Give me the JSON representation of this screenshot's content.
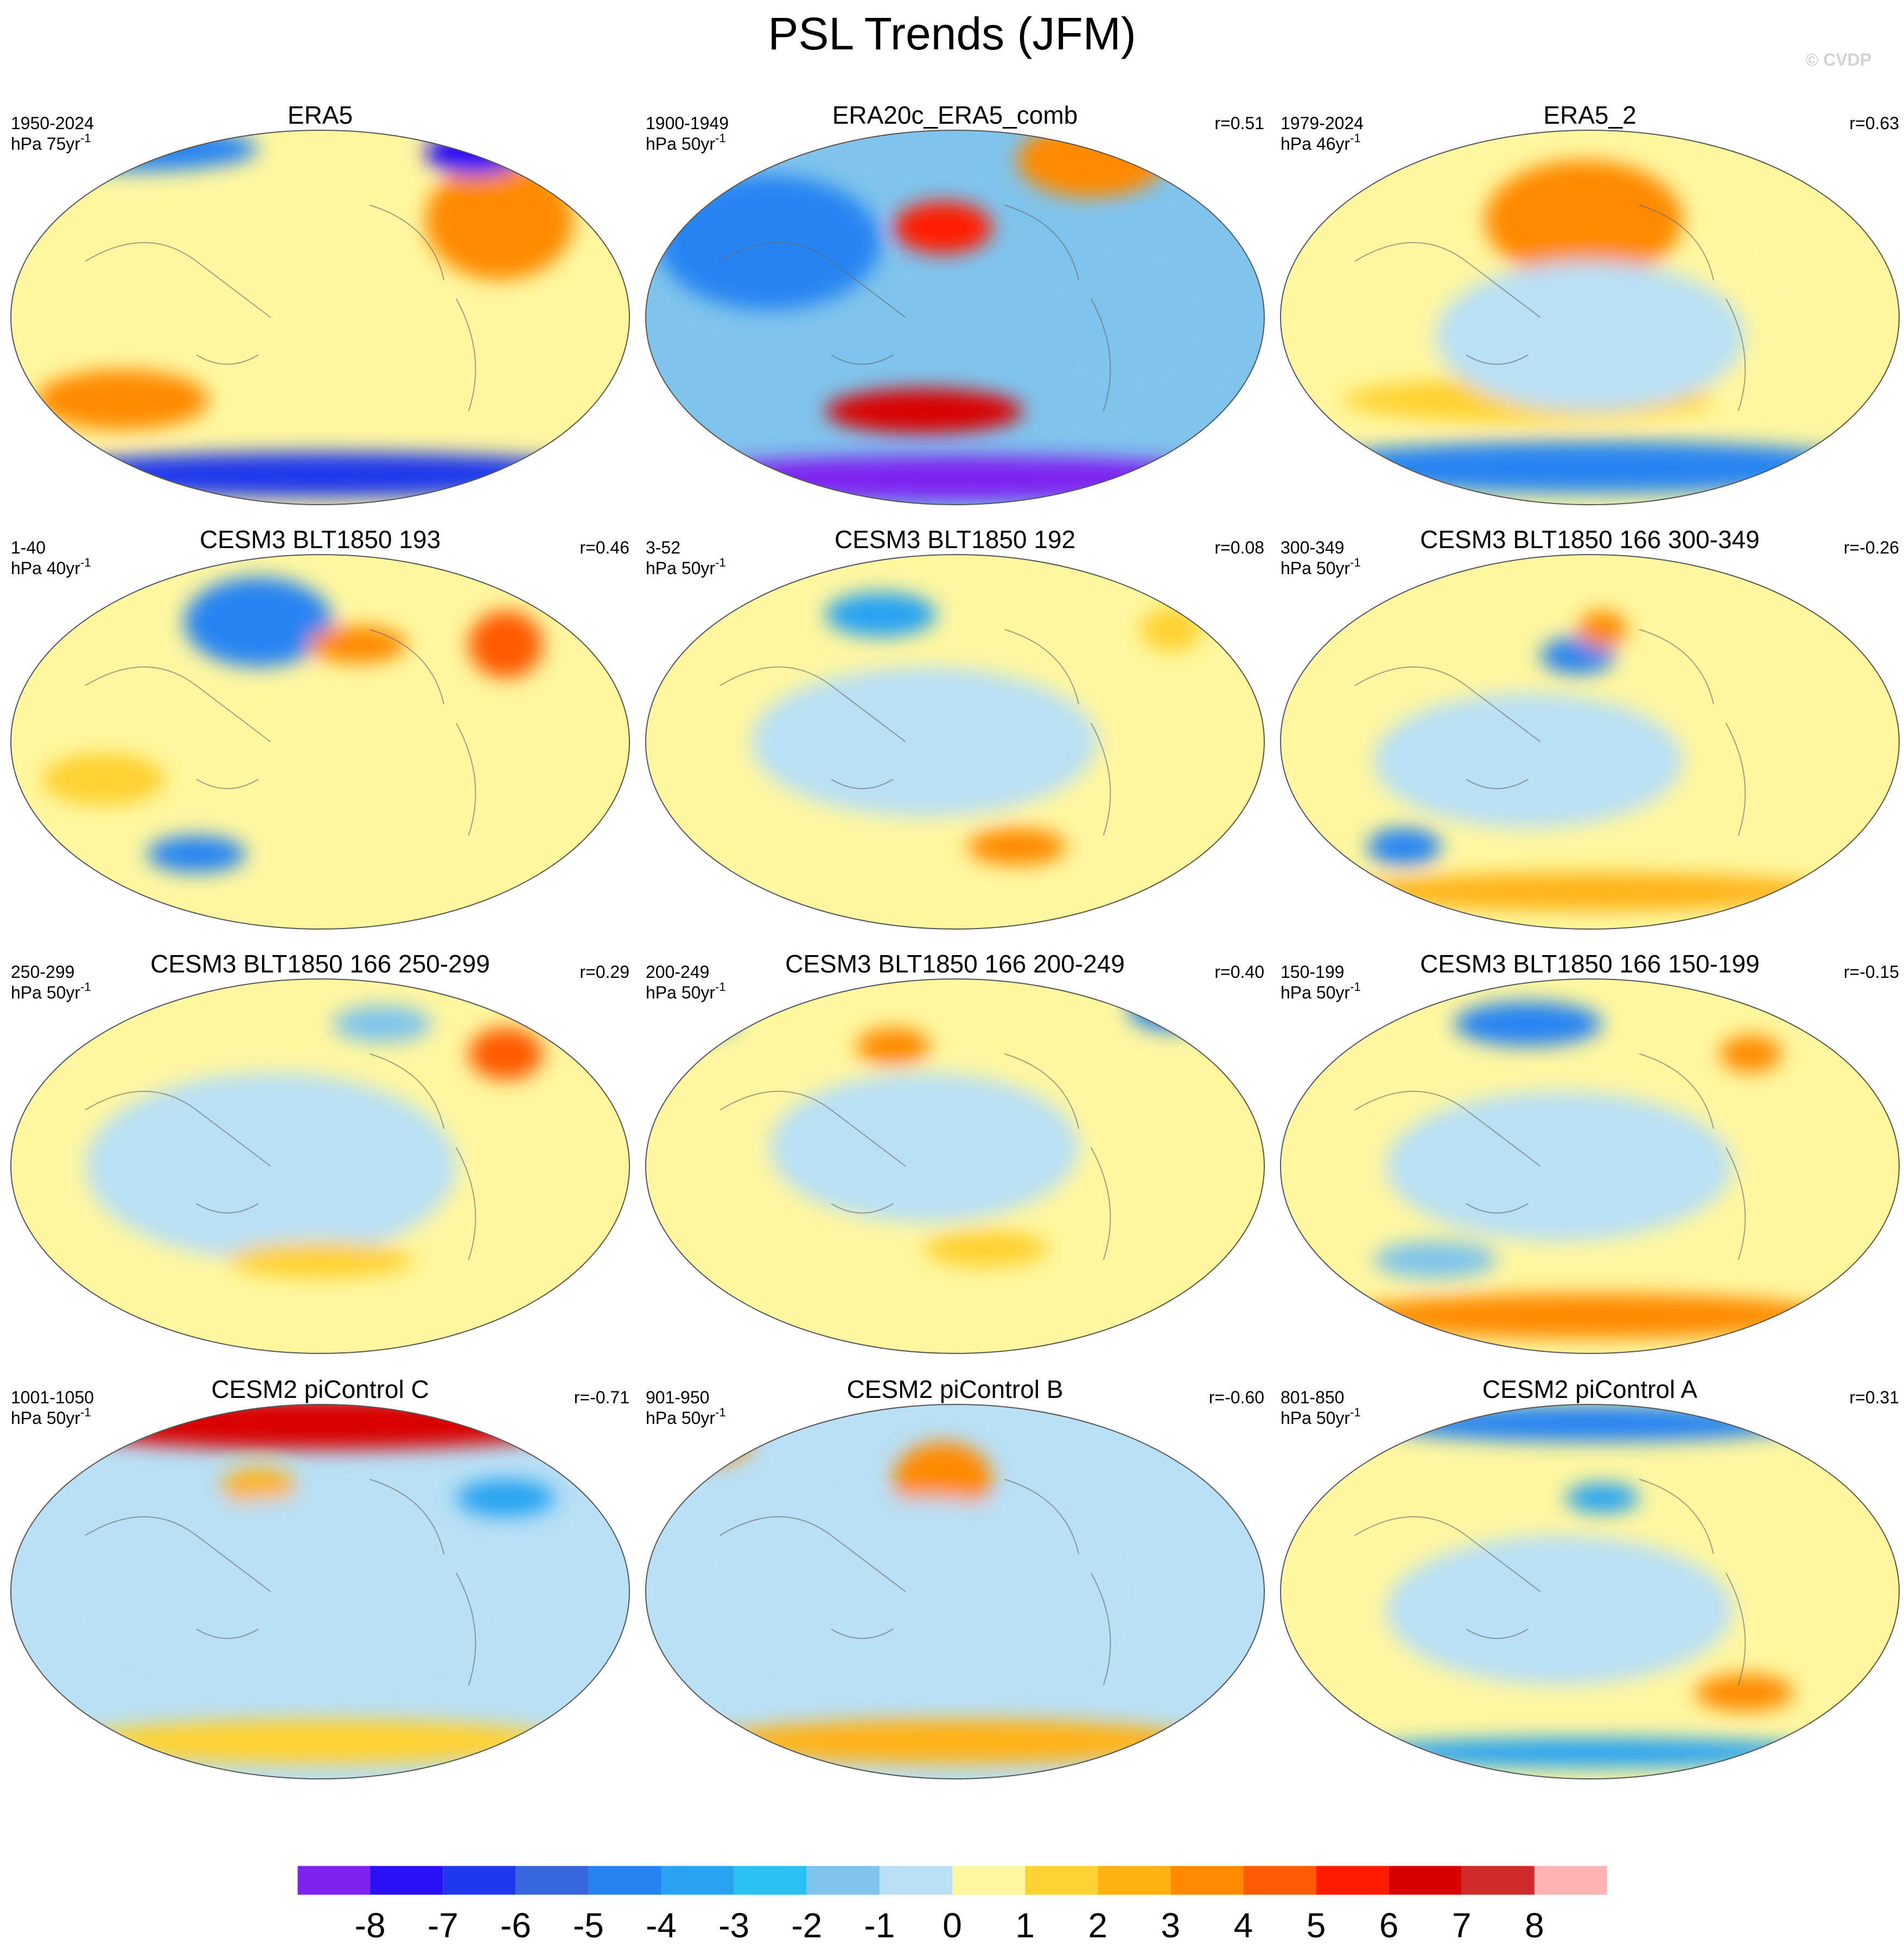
{
  "title": "PSL Trends (JFM)",
  "copyright": "© CVDP",
  "chart_data": {
    "type": "heatmap",
    "projection": "robinson",
    "grid": "3x4 small multiples",
    "colorbar": {
      "levels": [
        -8,
        -7,
        -6,
        -5,
        -4,
        -3,
        -2,
        -1,
        0,
        1,
        2,
        3,
        4,
        5,
        6,
        7,
        8
      ],
      "tick_labels": [
        "-8",
        "-7",
        "-6",
        "-5",
        "-4",
        "-3",
        "-2",
        "-1",
        "0",
        "1",
        "2",
        "3",
        "4",
        "5",
        "6",
        "7",
        "8"
      ],
      "colors": [
        "#7e22f0",
        "#2a10f5",
        "#1f38ec",
        "#3766de",
        "#2684f2",
        "#27a3f2",
        "#2bc0f3",
        "#7fc4ec",
        "#b9e0f5",
        "#fff7a0",
        "#ffd233",
        "#ffb212",
        "#ff8a00",
        "#ff5a06",
        "#ff1a00",
        "#d90000",
        "#d12a2a",
        "#ffb4b4"
      ]
    },
    "panels": [
      {
        "title": "ERA5",
        "period": "1950-2024",
        "units_base": "hPa 75yr",
        "units_exp": "-1",
        "r": "",
        "blobs": [
          [
            0.79,
            0.24,
            0.07,
            0.09,
            "#ff1a00"
          ],
          [
            0.79,
            0.24,
            0.12,
            0.16,
            "#ff8a00"
          ],
          [
            0.18,
            0.72,
            0.14,
            0.08,
            "#ff8a00"
          ],
          [
            0.5,
            0.92,
            0.5,
            0.06,
            "#1f38ec"
          ],
          [
            0.2,
            0.05,
            0.2,
            0.06,
            "#2684f2"
          ],
          [
            0.75,
            0.06,
            0.08,
            0.06,
            "#2a10f5"
          ]
        ],
        "base": "#fff7a0"
      },
      {
        "title": "ERA20c_ERA5_comb",
        "period": "1900-1949",
        "units_base": "hPa 50yr",
        "units_exp": "-1",
        "r": "r=0.51",
        "blobs": [
          [
            0.48,
            0.26,
            0.08,
            0.07,
            "#ff1a00"
          ],
          [
            0.45,
            0.75,
            0.16,
            0.06,
            "#d90000"
          ],
          [
            0.5,
            0.93,
            0.5,
            0.06,
            "#7e22f0"
          ],
          [
            0.72,
            0.08,
            0.12,
            0.1,
            "#ff8a00"
          ],
          [
            0.2,
            0.3,
            0.18,
            0.18,
            "#2684f2"
          ],
          [
            0.78,
            0.5,
            0.15,
            0.25,
            "#7fc4ec"
          ]
        ],
        "base": "#7fc4ec"
      },
      {
        "title": "ERA5_2",
        "period": "1979-2024",
        "units_base": "hPa 46yr",
        "units_exp": "-1",
        "r": "r=0.63",
        "blobs": [
          [
            0.49,
            0.24,
            0.1,
            0.1,
            "#ff1a00"
          ],
          [
            0.49,
            0.24,
            0.16,
            0.16,
            "#ff8a00"
          ],
          [
            0.5,
            0.9,
            0.48,
            0.07,
            "#2684f2"
          ],
          [
            0.4,
            0.72,
            0.3,
            0.06,
            "#ffd233"
          ],
          [
            0.85,
            0.3,
            0.12,
            0.2,
            "#fff7a0"
          ],
          [
            0.5,
            0.55,
            0.25,
            0.2,
            "#b9e0f5"
          ]
        ],
        "base": "#fff7a0"
      },
      {
        "title": "CESM3 BLT1850 193",
        "period": "1-40",
        "units_base": "hPa 40yr",
        "units_exp": "-1",
        "r": "r=0.46",
        "blobs": [
          [
            0.4,
            0.18,
            0.07,
            0.07,
            "#2a10f5"
          ],
          [
            0.4,
            0.18,
            0.12,
            0.12,
            "#2684f2"
          ],
          [
            0.8,
            0.24,
            0.06,
            0.09,
            "#ff5a06"
          ],
          [
            0.56,
            0.24,
            0.08,
            0.05,
            "#ff8a00"
          ],
          [
            0.3,
            0.8,
            0.08,
            0.05,
            "#2684f2"
          ],
          [
            0.15,
            0.6,
            0.1,
            0.07,
            "#ffd233"
          ]
        ],
        "base": "#fff7a0"
      },
      {
        "title": "CESM3 BLT1850 192",
        "period": "3-52",
        "units_base": "hPa 50yr",
        "units_exp": "-1",
        "r": "r=0.08",
        "blobs": [
          [
            0.38,
            0.16,
            0.09,
            0.06,
            "#27a3f2"
          ],
          [
            0.6,
            0.78,
            0.08,
            0.05,
            "#ff8a00"
          ],
          [
            0.85,
            0.2,
            0.05,
            0.06,
            "#ffd233"
          ],
          [
            0.45,
            0.5,
            0.28,
            0.2,
            "#b9e0f5"
          ]
        ],
        "base": "#fff7a0"
      },
      {
        "title": "CESM3 BLT1850 166 300-349",
        "period": "300-349",
        "units_base": "hPa 50yr",
        "units_exp": "-1",
        "r": "r=-0.26",
        "blobs": [
          [
            0.48,
            0.27,
            0.06,
            0.05,
            "#2684f2"
          ],
          [
            0.52,
            0.2,
            0.04,
            0.05,
            "#ff8a00"
          ],
          [
            0.2,
            0.78,
            0.06,
            0.05,
            "#2684f2"
          ],
          [
            0.5,
            0.9,
            0.4,
            0.05,
            "#ffb212"
          ],
          [
            0.4,
            0.55,
            0.25,
            0.18,
            "#b9e0f5"
          ]
        ],
        "base": "#fff7a0"
      },
      {
        "title": "CESM3 BLT1850 166 250-299",
        "period": "250-299",
        "units_base": "hPa 50yr",
        "units_exp": "-1",
        "r": "r=0.29",
        "blobs": [
          [
            0.8,
            0.2,
            0.06,
            0.07,
            "#ff5a06"
          ],
          [
            0.6,
            0.12,
            0.08,
            0.05,
            "#7fc4ec"
          ],
          [
            0.42,
            0.5,
            0.3,
            0.25,
            "#b9e0f5"
          ],
          [
            0.5,
            0.75,
            0.15,
            0.05,
            "#ffd233"
          ]
        ],
        "base": "#fff7a0"
      },
      {
        "title": "CESM3 BLT1850 166 200-249",
        "period": "200-249",
        "units_base": "hPa 50yr",
        "units_exp": "-1",
        "r": "r=0.40",
        "blobs": [
          [
            0.4,
            0.18,
            0.06,
            0.05,
            "#ff8a00"
          ],
          [
            0.05,
            0.1,
            0.1,
            0.06,
            "#2684f2"
          ],
          [
            0.85,
            0.08,
            0.07,
            0.06,
            "#2684f2"
          ],
          [
            0.55,
            0.72,
            0.1,
            0.05,
            "#ffd233"
          ],
          [
            0.45,
            0.45,
            0.25,
            0.2,
            "#b9e0f5"
          ]
        ],
        "base": "#fff7a0"
      },
      {
        "title": "CESM3 BLT1850 166 150-199",
        "period": "150-199",
        "units_base": "hPa 50yr",
        "units_exp": "-1",
        "r": "r=-0.15",
        "blobs": [
          [
            0.4,
            0.12,
            0.12,
            0.06,
            "#2684f2"
          ],
          [
            0.76,
            0.2,
            0.05,
            0.05,
            "#ff8a00"
          ],
          [
            0.5,
            0.9,
            0.4,
            0.06,
            "#ff8a00"
          ],
          [
            0.25,
            0.75,
            0.1,
            0.05,
            "#7fc4ec"
          ],
          [
            0.45,
            0.5,
            0.28,
            0.2,
            "#b9e0f5"
          ]
        ],
        "base": "#fff7a0"
      },
      {
        "title": "CESM2 piControl C",
        "period": "1001-1050",
        "units_base": "hPa 50yr",
        "units_exp": "-1",
        "r": "r=-0.71",
        "blobs": [
          [
            0.5,
            0.05,
            0.45,
            0.07,
            "#d90000"
          ],
          [
            0.8,
            0.25,
            0.08,
            0.05,
            "#27a3f2"
          ],
          [
            0.4,
            0.22,
            0.06,
            0.05,
            "#ffb212"
          ],
          [
            0.5,
            0.9,
            0.4,
            0.06,
            "#ffd233"
          ],
          [
            0.45,
            0.5,
            0.3,
            0.25,
            "#b9e0f5"
          ]
        ],
        "base": "#b9e0f5"
      },
      {
        "title": "CESM2 piControl B",
        "period": "901-950",
        "units_base": "hPa 50yr",
        "units_exp": "-1",
        "r": "r=-0.60",
        "blobs": [
          [
            0.48,
            0.2,
            0.05,
            0.06,
            "#ff1a00"
          ],
          [
            0.48,
            0.2,
            0.08,
            0.1,
            "#ff8a00"
          ],
          [
            0.5,
            0.9,
            0.4,
            0.06,
            "#ffb212"
          ],
          [
            0.1,
            0.1,
            0.07,
            0.06,
            "#ff8a00"
          ],
          [
            0.45,
            0.5,
            0.3,
            0.25,
            "#b9e0f5"
          ]
        ],
        "base": "#b9e0f5"
      },
      {
        "title": "CESM2 piControl A",
        "period": "801-850",
        "units_base": "hPa 50yr",
        "units_exp": "-1",
        "r": "r=0.31",
        "blobs": [
          [
            0.5,
            0.05,
            0.35,
            0.05,
            "#2684f2"
          ],
          [
            0.75,
            0.77,
            0.08,
            0.05,
            "#ff8a00"
          ],
          [
            0.52,
            0.25,
            0.06,
            0.04,
            "#27a3f2"
          ],
          [
            0.5,
            0.93,
            0.4,
            0.04,
            "#27a3f2"
          ],
          [
            0.45,
            0.55,
            0.28,
            0.2,
            "#b9e0f5"
          ]
        ],
        "base": "#fff7a0"
      }
    ]
  }
}
